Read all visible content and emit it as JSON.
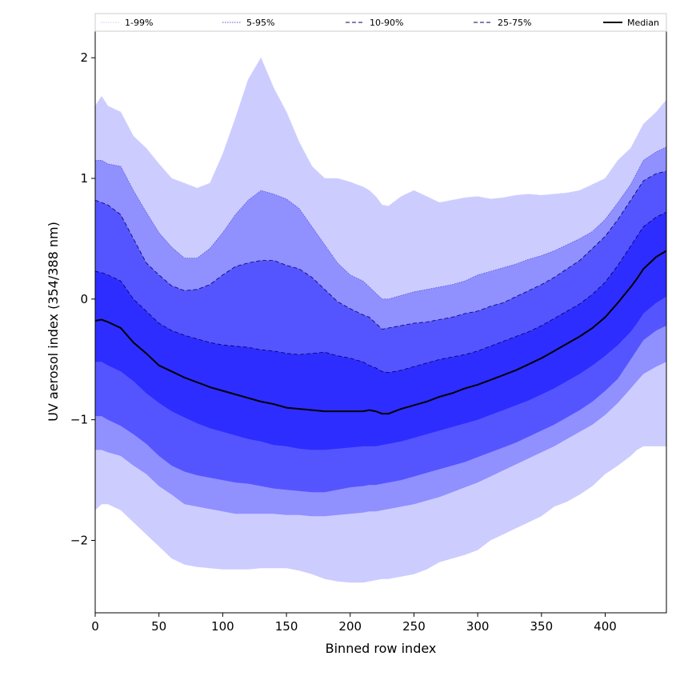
{
  "chart_data": {
    "type": "area",
    "xlabel": "Binned row index",
    "ylabel": "UV aerosol index (354/388 nm)",
    "xlim": [
      0,
      448
    ],
    "ylim": [
      -2.6,
      2.22
    ],
    "xticks": [
      0,
      50,
      100,
      150,
      200,
      250,
      300,
      350,
      400
    ],
    "yticks": [
      -2,
      -1,
      0,
      1,
      2
    ],
    "ytick_labels": [
      "−2",
      "−1",
      "0",
      "1",
      "2"
    ],
    "legend_position": "top, full width",
    "x": [
      0,
      5,
      10,
      20,
      30,
      40,
      50,
      60,
      70,
      80,
      90,
      100,
      110,
      120,
      130,
      140,
      150,
      160,
      170,
      180,
      190,
      200,
      210,
      215,
      220,
      225,
      230,
      240,
      250,
      260,
      270,
      280,
      290,
      300,
      310,
      320,
      330,
      340,
      350,
      360,
      370,
      380,
      390,
      400,
      410,
      420,
      425,
      430,
      440,
      448
    ],
    "bands": [
      {
        "name": "1-99%",
        "fill": "#ccccff",
        "line_color": "#ccccff",
        "line_style": "dotted",
        "upper": [
          1.6,
          1.68,
          1.6,
          1.55,
          1.35,
          1.25,
          1.12,
          1.0,
          0.96,
          0.92,
          0.96,
          1.2,
          1.5,
          1.82,
          2.0,
          1.75,
          1.55,
          1.3,
          1.1,
          1.0,
          1.0,
          0.97,
          0.93,
          0.9,
          0.85,
          0.78,
          0.77,
          0.85,
          0.9,
          0.85,
          0.8,
          0.82,
          0.84,
          0.85,
          0.83,
          0.84,
          0.86,
          0.87,
          0.86,
          0.87,
          0.88,
          0.9,
          0.95,
          1.0,
          1.15,
          1.25,
          1.35,
          1.45,
          1.55,
          1.65
        ],
        "lower": [
          -1.75,
          -1.7,
          -1.7,
          -1.75,
          -1.85,
          -1.95,
          -2.05,
          -2.15,
          -2.2,
          -2.22,
          -2.23,
          -2.24,
          -2.24,
          -2.24,
          -2.23,
          -2.23,
          -2.23,
          -2.25,
          -2.28,
          -2.32,
          -2.34,
          -2.35,
          -2.35,
          -2.34,
          -2.33,
          -2.32,
          -2.32,
          -2.3,
          -2.28,
          -2.24,
          -2.18,
          -2.15,
          -2.12,
          -2.08,
          -2.0,
          -1.95,
          -1.9,
          -1.85,
          -1.8,
          -1.72,
          -1.68,
          -1.62,
          -1.55,
          -1.45,
          -1.38,
          -1.3,
          -1.25,
          -1.22,
          -1.22,
          -1.22
        ]
      },
      {
        "name": "5-95%",
        "fill": "#9090ff",
        "line_color": "#5555dd",
        "line_style": "dotted",
        "upper": [
          1.15,
          1.15,
          1.12,
          1.1,
          0.9,
          0.72,
          0.55,
          0.43,
          0.34,
          0.34,
          0.42,
          0.55,
          0.7,
          0.82,
          0.9,
          0.87,
          0.83,
          0.75,
          0.6,
          0.45,
          0.3,
          0.2,
          0.15,
          0.1,
          0.05,
          0.0,
          0.0,
          0.03,
          0.06,
          0.08,
          0.1,
          0.12,
          0.15,
          0.2,
          0.23,
          0.26,
          0.29,
          0.33,
          0.36,
          0.4,
          0.45,
          0.5,
          0.56,
          0.66,
          0.8,
          0.95,
          1.05,
          1.15,
          1.22,
          1.26
        ],
        "lower": [
          -1.25,
          -1.25,
          -1.27,
          -1.3,
          -1.38,
          -1.45,
          -1.55,
          -1.62,
          -1.7,
          -1.72,
          -1.74,
          -1.76,
          -1.78,
          -1.78,
          -1.78,
          -1.78,
          -1.79,
          -1.79,
          -1.8,
          -1.8,
          -1.79,
          -1.78,
          -1.77,
          -1.76,
          -1.76,
          -1.75,
          -1.74,
          -1.72,
          -1.7,
          -1.67,
          -1.64,
          -1.6,
          -1.56,
          -1.52,
          -1.47,
          -1.42,
          -1.37,
          -1.32,
          -1.27,
          -1.22,
          -1.16,
          -1.1,
          -1.04,
          -0.96,
          -0.86,
          -0.74,
          -0.68,
          -0.62,
          -0.56,
          -0.52
        ]
      },
      {
        "name": "10-90%",
        "fill": "#5555ff",
        "line_color": "#000066",
        "line_style": "dashed",
        "upper": [
          0.82,
          0.8,
          0.78,
          0.7,
          0.5,
          0.3,
          0.2,
          0.11,
          0.07,
          0.08,
          0.12,
          0.2,
          0.27,
          0.3,
          0.32,
          0.32,
          0.28,
          0.25,
          0.18,
          0.08,
          -0.02,
          -0.08,
          -0.13,
          -0.15,
          -0.2,
          -0.25,
          -0.24,
          -0.22,
          -0.2,
          -0.19,
          -0.17,
          -0.15,
          -0.12,
          -0.1,
          -0.06,
          -0.03,
          0.02,
          0.07,
          0.12,
          0.18,
          0.25,
          0.32,
          0.42,
          0.52,
          0.66,
          0.82,
          0.9,
          0.98,
          1.04,
          1.06
        ],
        "lower": [
          -0.97,
          -0.97,
          -1.0,
          -1.05,
          -1.12,
          -1.2,
          -1.3,
          -1.38,
          -1.43,
          -1.46,
          -1.48,
          -1.5,
          -1.52,
          -1.53,
          -1.55,
          -1.57,
          -1.58,
          -1.59,
          -1.6,
          -1.6,
          -1.58,
          -1.56,
          -1.55,
          -1.54,
          -1.54,
          -1.53,
          -1.52,
          -1.5,
          -1.47,
          -1.44,
          -1.41,
          -1.38,
          -1.35,
          -1.31,
          -1.27,
          -1.23,
          -1.19,
          -1.14,
          -1.09,
          -1.04,
          -0.98,
          -0.92,
          -0.85,
          -0.76,
          -0.66,
          -0.5,
          -0.42,
          -0.34,
          -0.26,
          -0.22
        ]
      },
      {
        "name": "25-75%",
        "fill": "#2d2dff",
        "line_color": "#000066",
        "line_style": "dashed",
        "upper": [
          0.23,
          0.22,
          0.2,
          0.15,
          0.0,
          -0.1,
          -0.2,
          -0.26,
          -0.3,
          -0.33,
          -0.36,
          -0.38,
          -0.39,
          -0.4,
          -0.42,
          -0.43,
          -0.45,
          -0.46,
          -0.45,
          -0.44,
          -0.47,
          -0.49,
          -0.52,
          -0.55,
          -0.57,
          -0.6,
          -0.61,
          -0.59,
          -0.56,
          -0.53,
          -0.5,
          -0.48,
          -0.46,
          -0.43,
          -0.39,
          -0.35,
          -0.31,
          -0.27,
          -0.22,
          -0.16,
          -0.1,
          -0.04,
          0.04,
          0.14,
          0.28,
          0.44,
          0.52,
          0.6,
          0.68,
          0.72
        ],
        "lower": [
          -0.52,
          -0.52,
          -0.55,
          -0.6,
          -0.68,
          -0.78,
          -0.86,
          -0.93,
          -0.98,
          -1.03,
          -1.07,
          -1.1,
          -1.13,
          -1.16,
          -1.18,
          -1.21,
          -1.22,
          -1.24,
          -1.25,
          -1.25,
          -1.24,
          -1.23,
          -1.22,
          -1.22,
          -1.22,
          -1.21,
          -1.2,
          -1.18,
          -1.15,
          -1.12,
          -1.09,
          -1.06,
          -1.03,
          -1.0,
          -0.96,
          -0.92,
          -0.88,
          -0.84,
          -0.79,
          -0.74,
          -0.68,
          -0.62,
          -0.55,
          -0.47,
          -0.38,
          -0.27,
          -0.2,
          -0.12,
          -0.03,
          0.02
        ]
      }
    ],
    "median": {
      "name": "Median",
      "color": "#000000",
      "values": [
        -0.18,
        -0.17,
        -0.19,
        -0.24,
        -0.36,
        -0.45,
        -0.55,
        -0.6,
        -0.65,
        -0.69,
        -0.73,
        -0.76,
        -0.79,
        -0.82,
        -0.85,
        -0.87,
        -0.9,
        -0.91,
        -0.92,
        -0.93,
        -0.93,
        -0.93,
        -0.93,
        -0.92,
        -0.93,
        -0.95,
        -0.95,
        -0.91,
        -0.88,
        -0.85,
        -0.81,
        -0.78,
        -0.74,
        -0.71,
        -0.67,
        -0.63,
        -0.59,
        -0.54,
        -0.49,
        -0.43,
        -0.37,
        -0.31,
        -0.24,
        -0.15,
        -0.03,
        0.1,
        0.17,
        0.25,
        0.35,
        0.4
      ]
    }
  }
}
